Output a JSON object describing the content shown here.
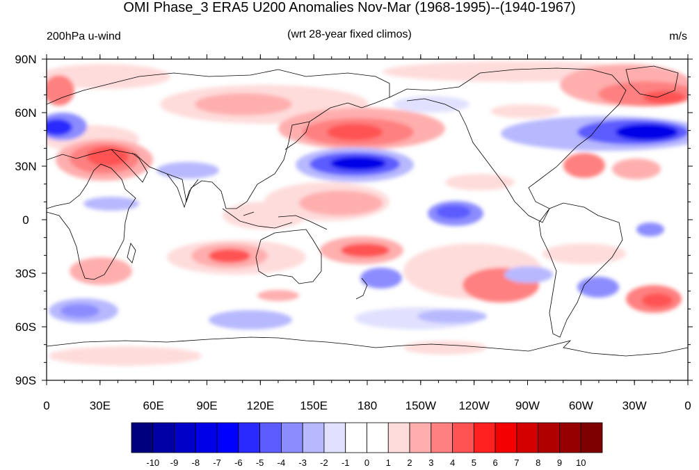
{
  "title": "OMI Phase_3 ERA5 U200 Anomalies Nov-Mar (1968-1995)--(1940-1967)",
  "left_label": "200hPa u-wind",
  "center_label": "(wrt 28-year fixed climos)",
  "units_label": "m/s",
  "lat_labels": [
    "90N",
    "60N",
    "30N",
    "0",
    "30S",
    "60S",
    "90S"
  ],
  "lon_labels": [
    "0",
    "30E",
    "60E",
    "90E",
    "120E",
    "150E",
    "180",
    "150W",
    "120W",
    "90W",
    "60W",
    "30W",
    "0"
  ],
  "colorbar": {
    "labels": [
      "-10",
      "-9",
      "-8",
      "-7",
      "-6",
      "-5",
      "-4",
      "-3",
      "-2",
      "-1",
      "0",
      "1",
      "2",
      "3",
      "4",
      "5",
      "6",
      "7",
      "8",
      "9",
      "10"
    ],
    "colors": [
      "#00007f",
      "#0000a6",
      "#0000c8",
      "#0000e8",
      "#0000ff",
      "#2a2aff",
      "#5c5cff",
      "#8c8cff",
      "#b8b8ff",
      "#e1e1ff",
      "#ffffff",
      "#ffffff",
      "#ffdcdc",
      "#ffaeae",
      "#ff8080",
      "#ff5252",
      "#ff2020",
      "#f40000",
      "#d40000",
      "#b00000",
      "#960000",
      "#7f0000"
    ]
  }
}
